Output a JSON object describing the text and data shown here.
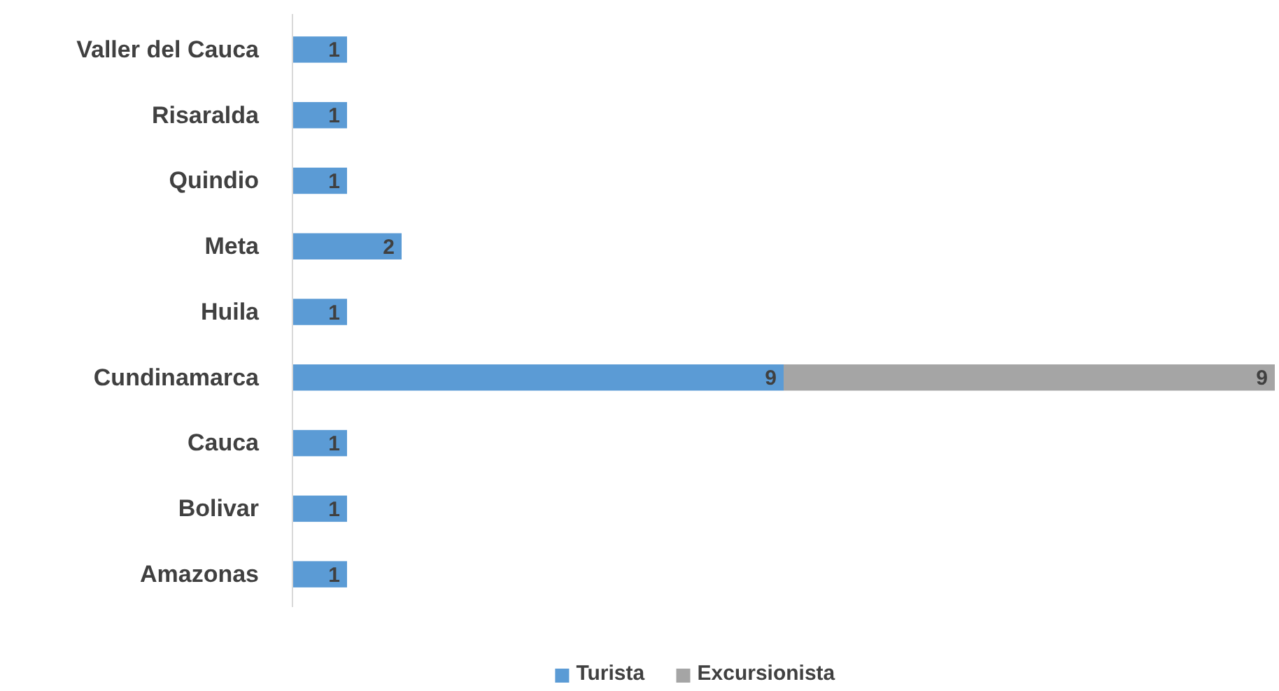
{
  "chart_data": {
    "type": "bar",
    "orientation": "horizontal",
    "stacked": true,
    "data_labels": true,
    "legend": "bottom",
    "tick_labels": "y",
    "categories": [
      "Valler del Cauca",
      "Risaralda",
      "Quindio",
      "Meta",
      "Huila",
      "Cundinamarca",
      "Cauca",
      "Bolivar",
      "Amazonas"
    ],
    "xlim": [
      0,
      18
    ],
    "series": [
      {
        "name": "Turista",
        "color": "#5b9bd5",
        "values": [
          1,
          1,
          1,
          2,
          1,
          9,
          1,
          1,
          1
        ]
      },
      {
        "name": "Excursionista",
        "color": "#a5a5a5",
        "values": [
          null,
          null,
          null,
          null,
          null,
          9,
          null,
          null,
          null
        ]
      }
    ]
  }
}
